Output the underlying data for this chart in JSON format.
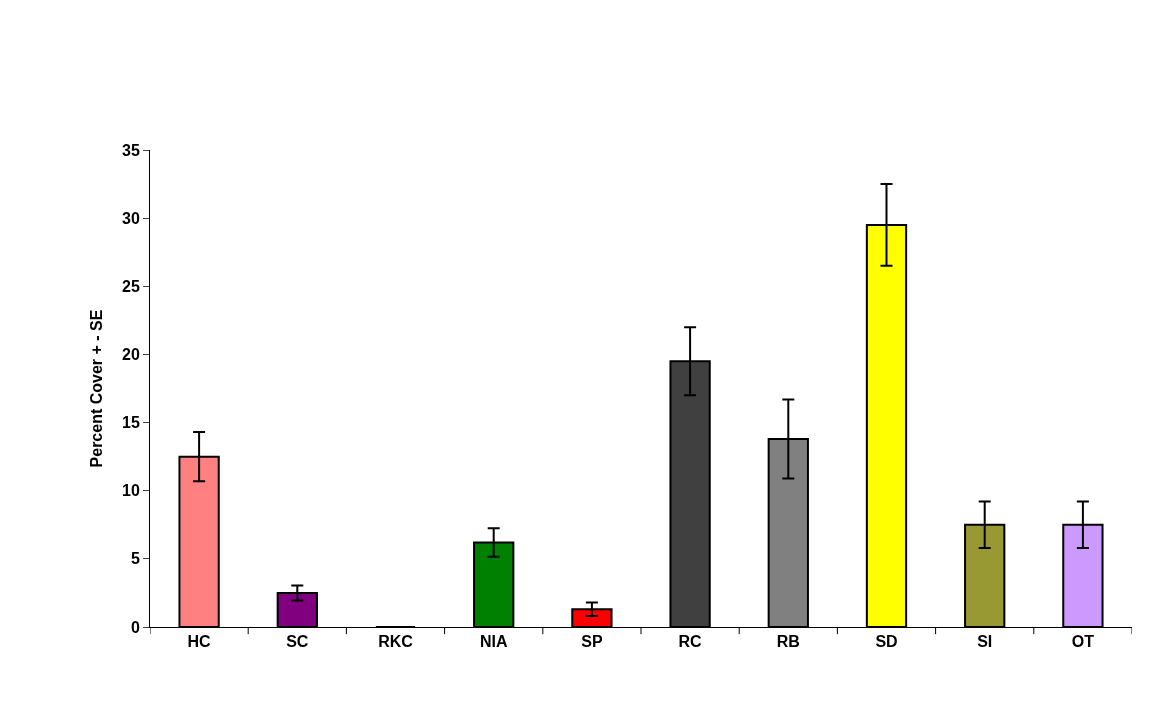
{
  "chart_data": {
    "type": "bar",
    "ylabel": "Percent Cover + - SE",
    "categories": [
      "HC",
      "SC",
      "RKC",
      "NIA",
      "SP",
      "RC",
      "RB",
      "SD",
      "SI",
      "OT"
    ],
    "values": [
      12.5,
      2.5,
      0,
      6.2,
      1.3,
      19.5,
      13.8,
      29.5,
      7.5,
      7.5
    ],
    "errors": [
      1.8,
      0.55,
      null,
      1.05,
      0.5,
      2.5,
      2.9,
      3.0,
      1.7,
      1.7
    ],
    "colors": [
      "#ff8080",
      "#800080",
      "#000000",
      "#008000",
      "#ff0000",
      "#404040",
      "#808080",
      "#ffff00",
      "#999933",
      "#cc99ff"
    ],
    "ylim": [
      0,
      35
    ],
    "yticks": [
      0,
      5,
      10,
      15,
      20,
      25,
      30,
      35
    ]
  }
}
